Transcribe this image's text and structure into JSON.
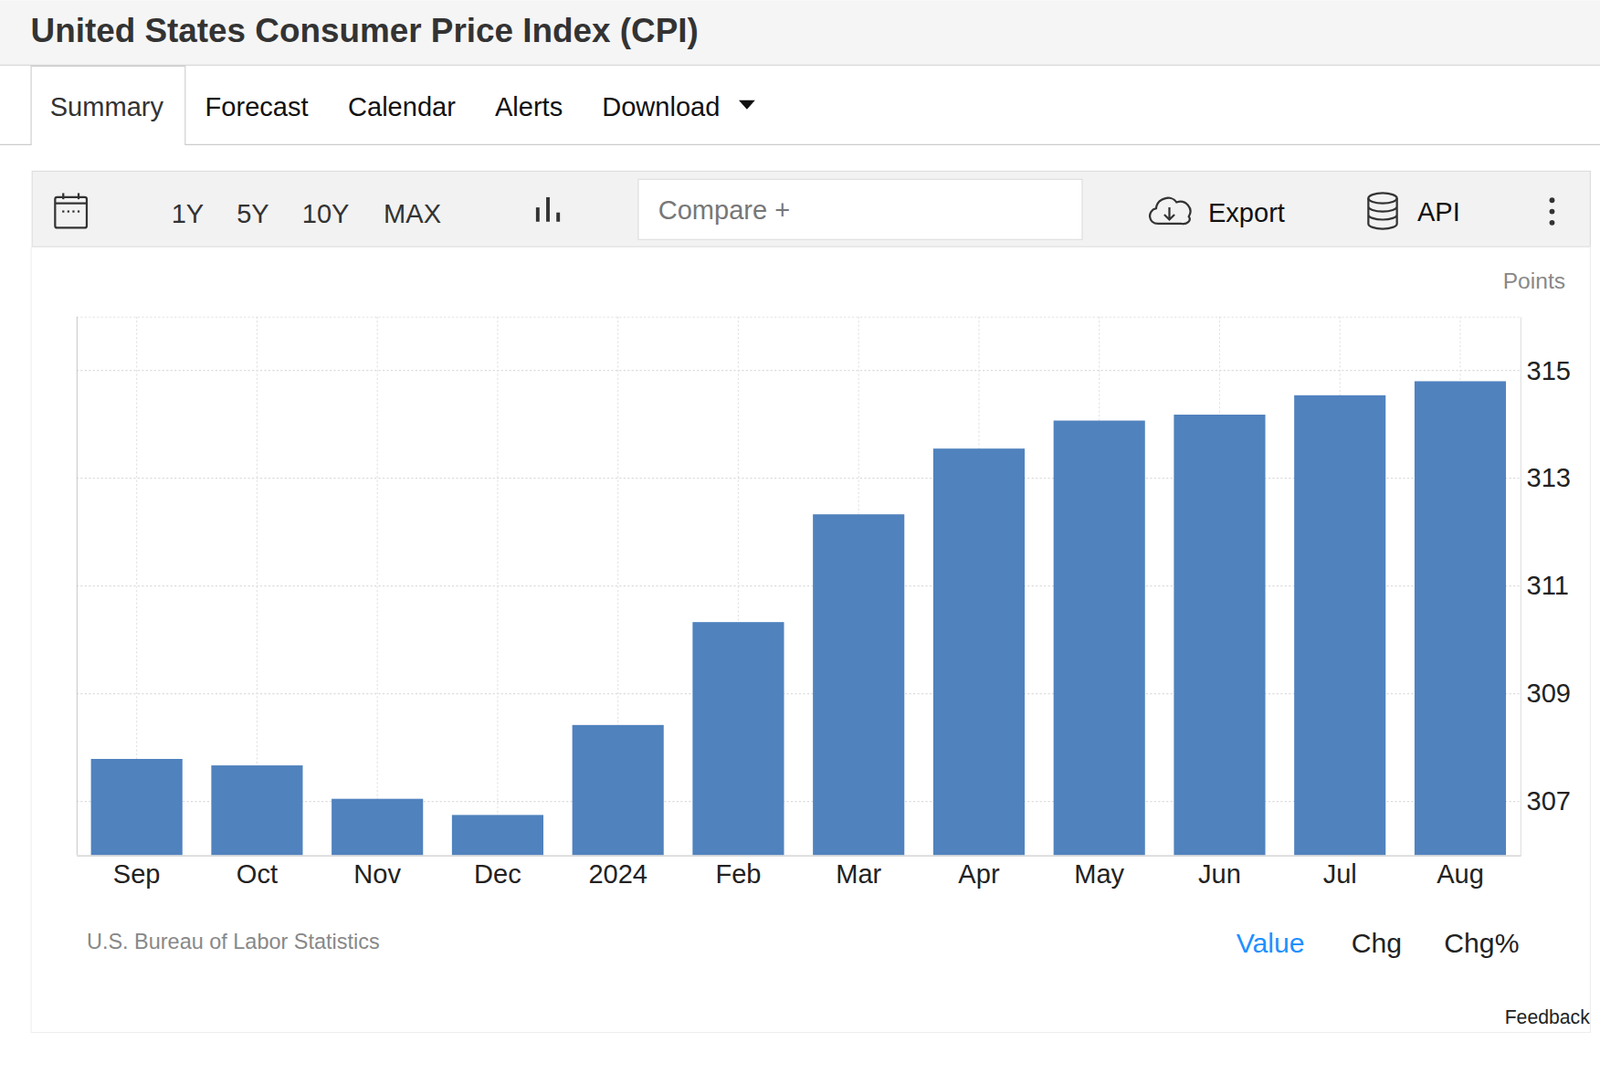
{
  "page": {
    "tabs": [
      "Summary",
      "Forecast",
      "Calendar",
      "Alerts",
      "Download"
    ],
    "ranges": [
      "1Y",
      "5Y",
      "10Y",
      "MAX"
    ],
    "compare": "Compare +",
    "export": "Export",
    "api": "API",
    "views": [
      "Value",
      "Chg",
      "Chg%"
    ],
    "feedback": "Feedback"
  },
  "chart_data": {
    "type": "bar",
    "title": "United States Consumer Price Index (CPI)",
    "ylabel": "Points",
    "source": "U.S. Bureau of Labor Statistics",
    "categories": [
      "Sep",
      "Oct",
      "Nov",
      "Dec",
      "2024",
      "Feb",
      "Mar",
      "Apr",
      "May",
      "Jun",
      "Jul",
      "Aug"
    ],
    "values": [
      307.79,
      307.67,
      307.05,
      306.75,
      308.42,
      310.33,
      312.33,
      313.55,
      314.07,
      314.18,
      314.54,
      314.8
    ],
    "color": "#5082be",
    "ylim": [
      306,
      316
    ],
    "yticks": [
      307,
      309,
      311,
      313,
      315
    ],
    "grid": true
  }
}
